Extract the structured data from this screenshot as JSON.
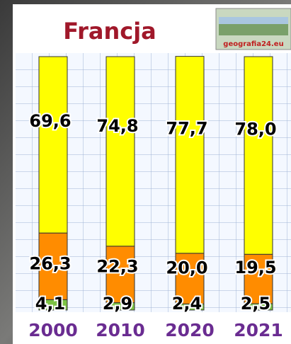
{
  "chart_data": {
    "type": "stacked_bar",
    "title": "Francja",
    "logo_text": "geografia24.eu",
    "categories": [
      "2000",
      "2010",
      "2020",
      "2021"
    ],
    "ylim": [
      0,
      100
    ],
    "series": [
      {
        "color": "#7cc243",
        "values": [
          4.1,
          2.9,
          2.4,
          2.5
        ],
        "value_labels": [
          "4,1",
          "2,9",
          "2,4",
          "2,5"
        ]
      },
      {
        "color": "#ff8c00",
        "values": [
          26.3,
          22.3,
          20.0,
          19.5
        ],
        "value_labels": [
          "26,3",
          "22,3",
          "20,0",
          "19,5"
        ]
      },
      {
        "color": "#ffff00",
        "values": [
          69.6,
          74.8,
          77.7,
          78.0
        ],
        "value_labels": [
          "69,6",
          "74,8",
          "77,7",
          "78,0"
        ]
      }
    ]
  }
}
